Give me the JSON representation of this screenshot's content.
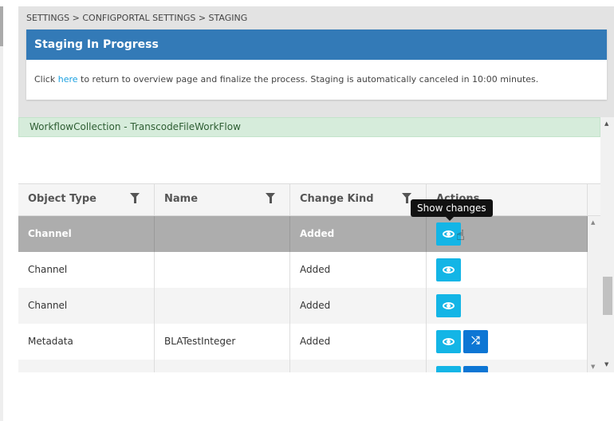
{
  "breadcrumb": "SETTINGS > CONFIGPORTAL SETTINGS > STAGING",
  "panel": {
    "title": "Staging In Progress",
    "text_before": "Click ",
    "link": "here",
    "text_after": " to return to overview page and finalize the process. Staging is automatically canceled in 10:00 minutes."
  },
  "banner": "WorkflowCollection - TranscodeFileWorkFlow",
  "table": {
    "columns": [
      "Object Type",
      "Name",
      "Change Kind",
      "Actions"
    ],
    "rows": [
      {
        "type": "Channel",
        "name": "",
        "kind": "Added",
        "selected": true
      },
      {
        "type": "Channel",
        "name": "",
        "kind": "Added"
      },
      {
        "type": "Channel",
        "name": "",
        "kind": "Added"
      },
      {
        "type": "Metadata",
        "name": "BLATestInteger",
        "kind": "Added"
      },
      {
        "type": "",
        "name": "",
        "kind": ""
      }
    ]
  },
  "tooltip": "Show changes",
  "colors": {
    "header": "#337ab7",
    "view_button": "#13b5e6",
    "merge_button": "#0d76d4",
    "banner": "#d6ecdb"
  }
}
